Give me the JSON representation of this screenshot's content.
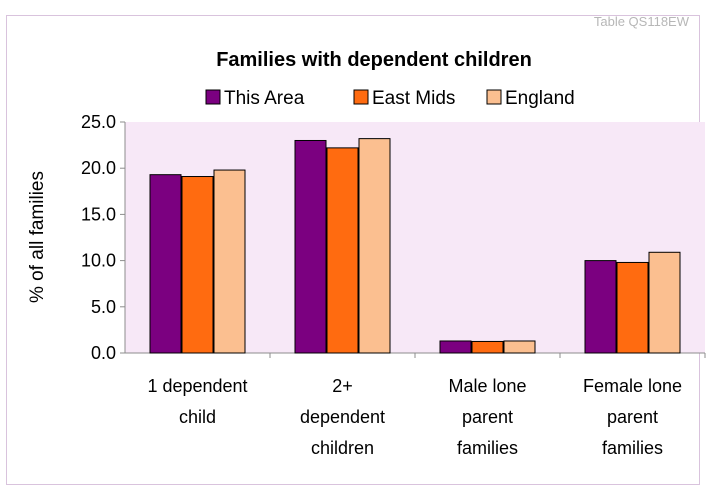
{
  "table_ref": "Table QS118EW",
  "chart_data": {
    "type": "bar",
    "title": "Families with dependent children",
    "ylabel": "% of all families",
    "xlabel": "",
    "ylim": [
      0,
      25
    ],
    "yticks": [
      "0.0",
      "5.0",
      "10.0",
      "15.0",
      "20.0",
      "25.0"
    ],
    "ytick_values": [
      0,
      5,
      10,
      15,
      20,
      25
    ],
    "legend_position": "top",
    "grid": false,
    "categories": [
      [
        "1 dependent",
        "child"
      ],
      [
        "2+",
        "dependent",
        "children"
      ],
      [
        "Male lone",
        "parent",
        "families"
      ],
      [
        "Female lone",
        "parent",
        "families"
      ]
    ],
    "series": [
      {
        "name": "This Area",
        "color": "#7b0080",
        "values": [
          19.3,
          23.0,
          1.3,
          10.0
        ]
      },
      {
        "name": "East Mids",
        "color": "#ff6b10",
        "values": [
          19.1,
          22.2,
          1.25,
          9.8
        ]
      },
      {
        "name": "England",
        "color": "#fbbf90",
        "values": [
          19.8,
          23.2,
          1.3,
          10.9
        ]
      }
    ]
  }
}
